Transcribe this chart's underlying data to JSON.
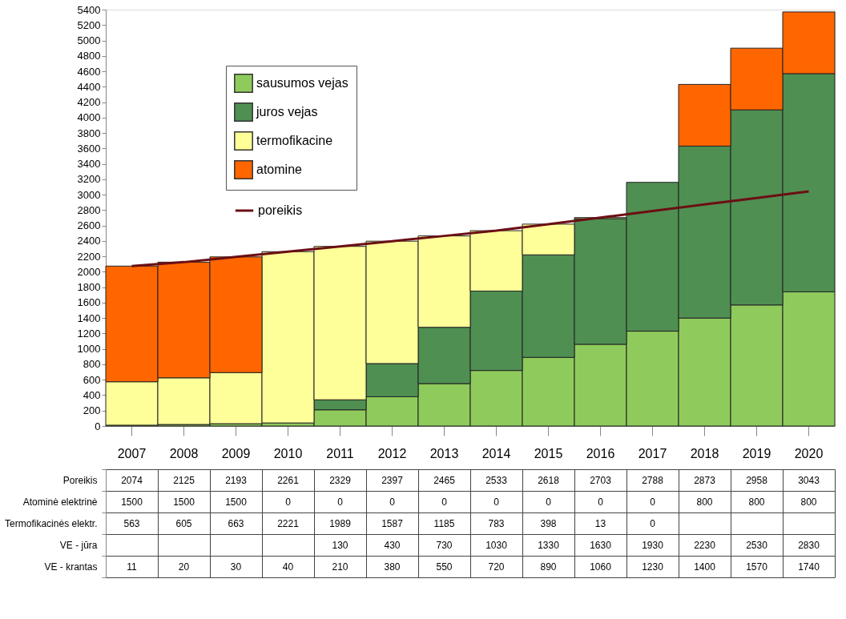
{
  "chart_data": {
    "type": "bar",
    "stacked": true,
    "legend": "top left",
    "grid": false,
    "data_labels": true,
    "categories": [
      "2007",
      "2008",
      "2009",
      "2010",
      "2011",
      "2012",
      "2013",
      "2014",
      "2015",
      "2016",
      "2017",
      "2018",
      "2019",
      "2020"
    ],
    "ylim": [
      0,
      5400
    ],
    "yticks": [
      0,
      200,
      400,
      600,
      800,
      1000,
      1200,
      1400,
      1600,
      1800,
      2000,
      2200,
      2400,
      2600,
      2800,
      3000,
      3200,
      3400,
      3600,
      3800,
      4000,
      4200,
      4400,
      4600,
      4800,
      5000,
      5200,
      5400
    ],
    "series": [
      {
        "name": "sausumos vejas",
        "color": "#8fcb5c",
        "values": [
          11,
          20,
          30,
          40,
          210,
          380,
          550,
          720,
          890,
          1060,
          1230,
          1400,
          1570,
          1740
        ]
      },
      {
        "name": "juros vejas",
        "color": "#4f8f52",
        "values": [
          null,
          null,
          null,
          null,
          130,
          430,
          730,
          1030,
          1330,
          1630,
          1930,
          2230,
          2530,
          2830
        ]
      },
      {
        "name": "termofikacine",
        "color": "#ffff99",
        "values": [
          563,
          605,
          663,
          2221,
          1989,
          1587,
          1185,
          783,
          398,
          13,
          0,
          null,
          null,
          null
        ]
      },
      {
        "name": "atomine",
        "color": "#ff6600",
        "values": [
          1500,
          1500,
          1500,
          0,
          0,
          0,
          0,
          0,
          0,
          0,
          0,
          800,
          800,
          800
        ]
      },
      {
        "name": "poreikis",
        "type": "line",
        "color": "#6b0f14",
        "values": [
          2074,
          2125,
          2193,
          2261,
          2329,
          2397,
          2465,
          2533,
          2618,
          2703,
          2788,
          2873,
          2958,
          3043
        ]
      }
    ],
    "annotations": [
      "Poreikis",
      "Atominė elektrinė",
      "Termofikacinės elektr.",
      "VE - jūra",
      "VE - krantas"
    ]
  }
}
